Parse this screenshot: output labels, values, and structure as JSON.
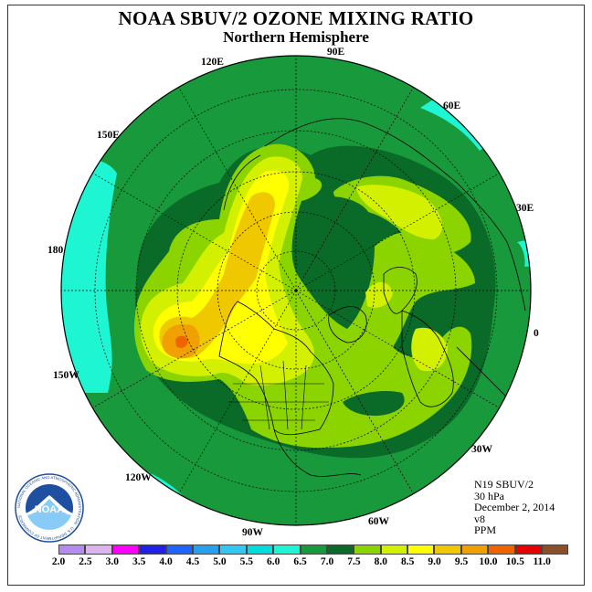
{
  "header": {
    "title": "NOAA SBUV/2 OZONE MIXING RATIO",
    "subtitle": "Northern Hemisphere"
  },
  "map": {
    "projection": "north polar stereographic",
    "longitude_labels": [
      "90E",
      "60E",
      "30E",
      "0",
      "30W",
      "60W",
      "90W",
      "120W",
      "150W",
      "180",
      "150E",
      "120E"
    ]
  },
  "info": {
    "satellite": "N19 SBUV/2",
    "level": "30 hPa",
    "date": "December 2, 2014",
    "version": "v8",
    "units": "PPM"
  },
  "colorbar": {
    "ticks": [
      "2.0",
      "2.5",
      "3.0",
      "3.5",
      "4.0",
      "4.5",
      "5.0",
      "5.5",
      "6.0",
      "6.5",
      "7.0",
      "7.5",
      "8.0",
      "8.5",
      "9.0",
      "9.5",
      "10.0",
      "10.5",
      "11.0"
    ],
    "colors": [
      "#b48cf0",
      "#dcb4f0",
      "#ff00ff",
      "#2020e6",
      "#1e64ff",
      "#28a0f0",
      "#32c8f5",
      "#00dcdc",
      "#1ef5d2",
      "#189a3c",
      "#0a6a28",
      "#8cd400",
      "#d2f000",
      "#ffff00",
      "#f0c800",
      "#f0a000",
      "#f06400",
      "#e60000",
      "#8c5028"
    ]
  },
  "logo": {
    "text": "NOAA",
    "ring_text": "NATIONAL OCEANIC AND ATMOSPHERIC ADMINISTRATION · U.S. DEPARTMENT OF COMMERCE"
  }
}
